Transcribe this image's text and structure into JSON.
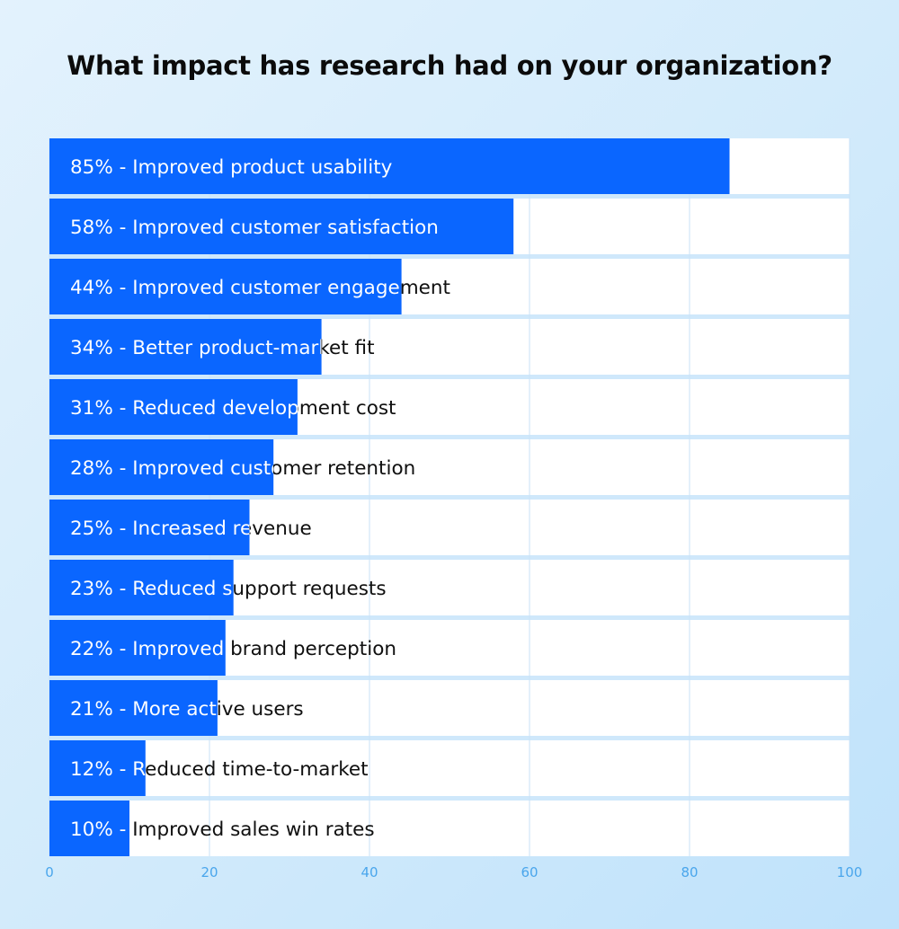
{
  "chart_data": {
    "type": "bar",
    "orientation": "horizontal",
    "title": "What impact has research had on your organization?",
    "categories": [
      "85% - Improved product usability",
      "58% - Improved customer satisfaction",
      "44% - Improved customer engagement",
      "34% - Better product-market fit",
      "31% - Reduced development cost",
      "28% - Improved customer retention",
      "25% - Increased revenue",
      "23% - Reduced support requests",
      "22% - Improved  brand perception",
      "21% - More active users",
      "12% - Reduced time-to-market",
      "10% - Improved sales win rates"
    ],
    "values": [
      85,
      58,
      44,
      34,
      31,
      28,
      25,
      23,
      22,
      21,
      12,
      10
    ],
    "xlim": [
      0,
      100
    ],
    "xticks": [
      "0",
      "20",
      "40",
      "60",
      "80",
      "100"
    ],
    "grid": true,
    "colors": {
      "bar": "#0a66ff",
      "row_bg": "#ffffff",
      "gap": "#cfe8fb",
      "grid": "#c8e2f7",
      "tick": "#4aa6ec"
    }
  }
}
